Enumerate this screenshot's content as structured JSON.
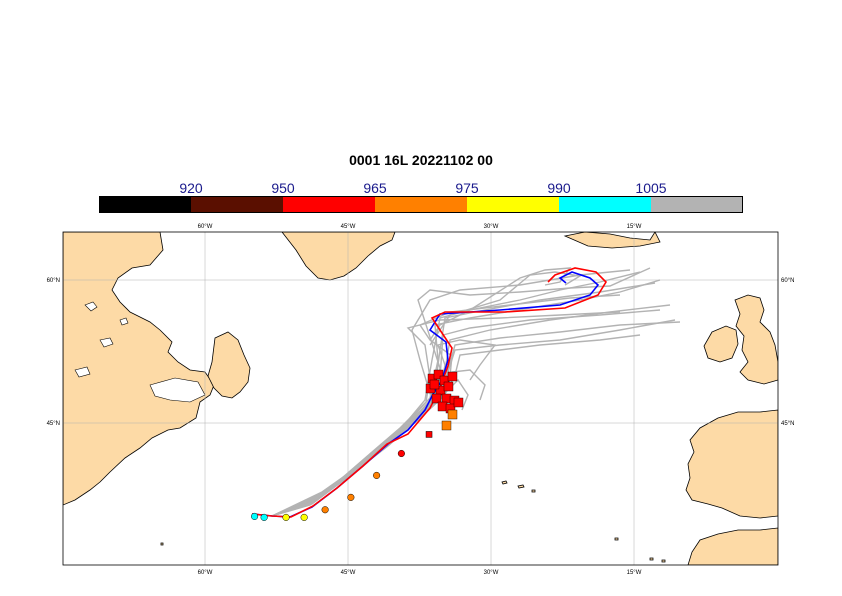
{
  "title": "0001 16L 20221102 00",
  "colorbar": {
    "labels": [
      "920",
      "950",
      "965",
      "975",
      "990",
      "1005"
    ],
    "segments": [
      {
        "color": "#000000"
      },
      {
        "color": "#5a0f00"
      },
      {
        "color": "#ff0000"
      },
      {
        "color": "#ff8000"
      },
      {
        "color": "#ffff00"
      },
      {
        "color": "#00ffff"
      },
      {
        "color": "#b3b3b3"
      }
    ]
  },
  "map": {
    "lon_range": [
      -75,
      0
    ],
    "lat_range": [
      30,
      65
    ],
    "land_color": "#fddaa6",
    "ocean_color": "#ffffff",
    "lon_labels": [
      "60°W",
      "45°W",
      "30°W",
      "15°W"
    ],
    "lat_labels": [
      "60°N",
      "45°N"
    ],
    "lon_ticks": [
      -60,
      -45,
      -30,
      -15
    ],
    "lat_ticks": [
      60,
      45
    ]
  },
  "tracks": {
    "ensemble_color": "#b3b3b3",
    "control_color": "#0000ff",
    "hires_color": "#ff0000",
    "hires_points": [
      {
        "lon": -54.8,
        "lat": 35.2,
        "p": "990"
      },
      {
        "lon": -53.8,
        "lat": 35.1,
        "p": "990"
      },
      {
        "lon": -51.5,
        "lat": 35.1,
        "p": "975"
      },
      {
        "lon": -49.6,
        "lat": 35.1,
        "p": "975"
      },
      {
        "lon": -47.4,
        "lat": 35.9,
        "p": "965"
      },
      {
        "lon": -44.7,
        "lat": 37.2,
        "p": "965"
      },
      {
        "lon": -42.0,
        "lat": 39.5,
        "p": "965"
      },
      {
        "lon": -39.4,
        "lat": 41.8,
        "p": "950"
      },
      {
        "lon": -36.5,
        "lat": 43.8,
        "p": "950"
      }
    ]
  }
}
